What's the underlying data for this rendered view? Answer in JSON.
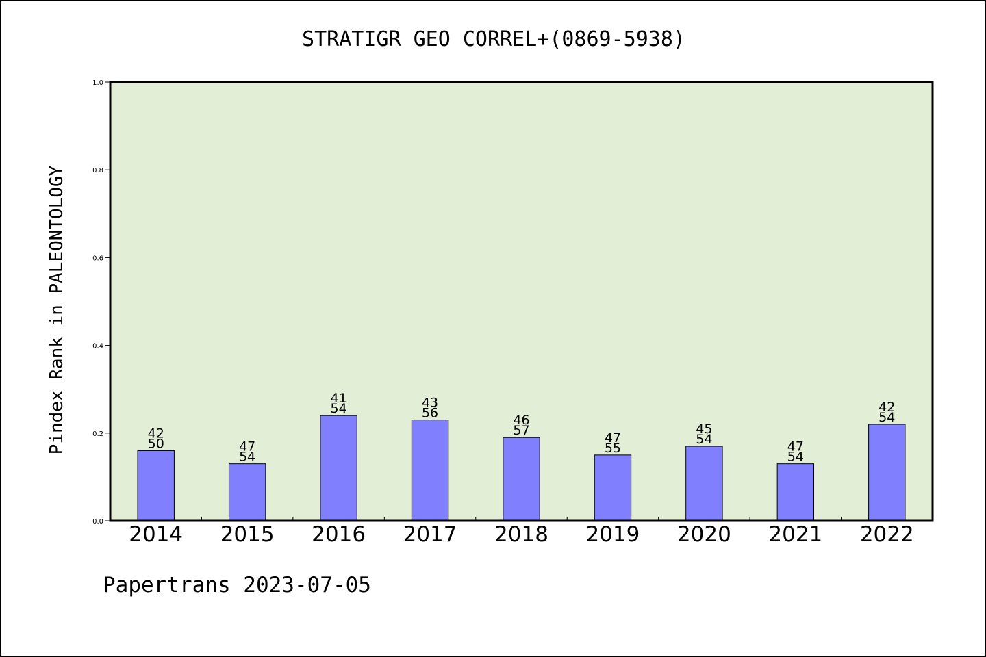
{
  "chart_data": {
    "type": "bar",
    "title": "STRATIGR GEO CORREL+(0869-5938)",
    "ylabel": "Pindex Rank in PALEONTOLOGY",
    "xlabel": "",
    "ylim": [
      0,
      1.0
    ],
    "yticks": [
      "0.0",
      "0.2",
      "0.4",
      "0.6",
      "0.8",
      "1.0"
    ],
    "categories": [
      "2014",
      "2015",
      "2016",
      "2017",
      "2018",
      "2019",
      "2020",
      "2021",
      "2022"
    ],
    "values": [
      0.16,
      0.13,
      0.24,
      0.23,
      0.19,
      0.15,
      0.17,
      0.13,
      0.22
    ],
    "labels_top": [
      "42",
      "47",
      "41",
      "43",
      "46",
      "47",
      "45",
      "47",
      "42"
    ],
    "labels_bottom": [
      "50",
      "54",
      "54",
      "56",
      "57",
      "55",
      "54",
      "54",
      "54"
    ],
    "grid": false,
    "colors": {
      "plot_background": "#e2efd6",
      "bar": "#8080ff",
      "axis": "#000000"
    }
  },
  "footer": "Papertrans 2023-07-05"
}
